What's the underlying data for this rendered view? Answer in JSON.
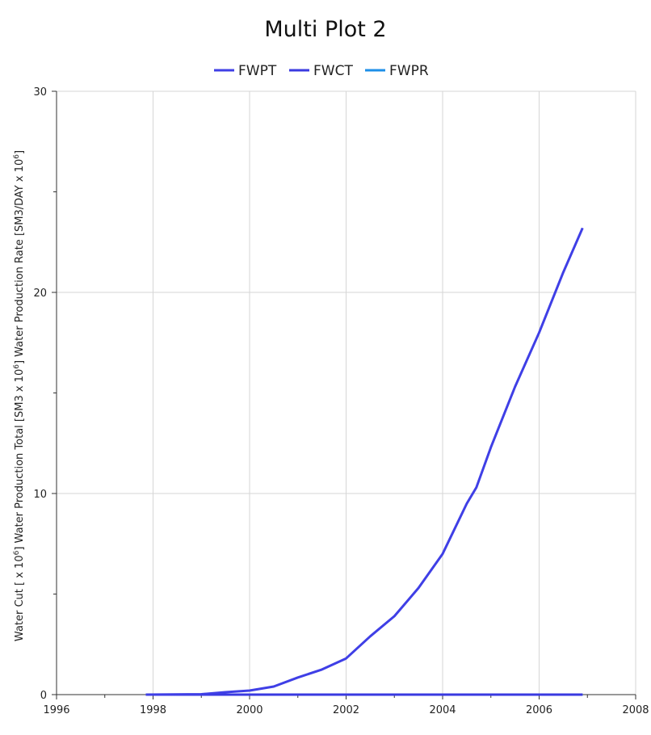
{
  "chart_data": {
    "type": "line",
    "title": "Multi Plot 2",
    "ylabel_parts": [
      "Water Cut [ x 10",
      "6",
      "] Water Production Total [SM3 x 10",
      "6",
      "] Water Production Rate [SM3/DAY x 10",
      "6",
      "]"
    ],
    "xlabel": "",
    "xlim": [
      1996,
      2008
    ],
    "ylim": [
      0,
      30
    ],
    "x_ticks": [
      "1996",
      "1998",
      "2000",
      "2002",
      "2004",
      "2006",
      "2008"
    ],
    "y_ticks": [
      "0",
      "10",
      "20",
      "30"
    ],
    "grid": true,
    "legend_position": "top-center",
    "series": [
      {
        "name": "FWPT",
        "color": "#3f3fe6",
        "x": [
          1997.85,
          1999.0,
          1999.5,
          2000.0,
          2000.5,
          2001.0,
          2001.5,
          2002.0,
          2002.5,
          2003.0,
          2003.5,
          2004.0,
          2004.5,
          2004.7,
          2005.0,
          2005.5,
          2006.0,
          2006.5,
          2006.9
        ],
        "values": [
          0.0,
          0.02,
          0.12,
          0.2,
          0.4,
          0.85,
          1.25,
          1.8,
          2.9,
          3.9,
          5.3,
          7.0,
          9.5,
          10.3,
          12.3,
          15.3,
          18.0,
          21.0,
          23.2
        ]
      },
      {
        "name": "FWCT",
        "color": "#3a3ae0",
        "x": [
          1997.85,
          2006.9
        ],
        "values": [
          0.0,
          0.0
        ]
      },
      {
        "name": "FWPR",
        "color": "#1e8fe8",
        "x": [
          1997.85,
          2006.9
        ],
        "values": [
          0.0,
          0.0
        ]
      }
    ]
  }
}
